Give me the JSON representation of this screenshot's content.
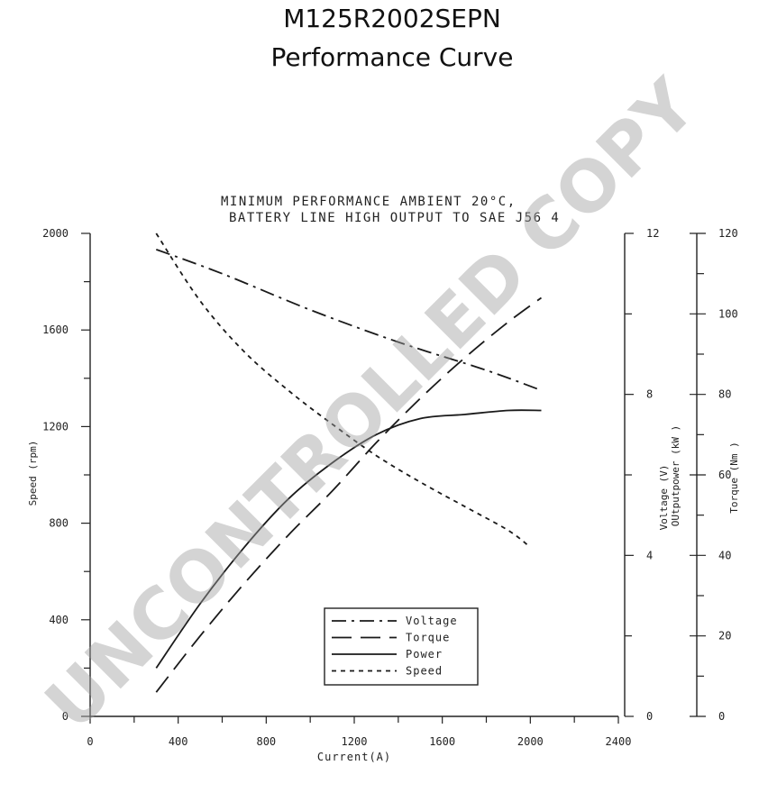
{
  "page": {
    "title_line1": "M125R2002SEPN",
    "title_line2": "Performance Curve",
    "watermark": "UNCONTROLLED COPY"
  },
  "chart_data": {
    "type": "line",
    "subtitle_line1": "MINIMUM PERFORMANCE AMBIENT 20°C,",
    "subtitle_line2": "BATTERY LINE HIGH OUTPUT TO SAE J56 4",
    "xlabel": "Current(A)",
    "xlim": [
      0,
      2400
    ],
    "x_ticks": [
      0,
      400,
      800,
      1200,
      1600,
      2000,
      2400
    ],
    "x_tick_labels": [
      "0",
      "400",
      "800",
      "1200",
      "1600",
      "2000",
      "2400"
    ],
    "y_axes": {
      "speed": {
        "label": "Speed (rpm)",
        "range": [
          0,
          2000
        ],
        "ticks": [
          0,
          400,
          800,
          1200,
          1600,
          2000
        ],
        "tick_labels": [
          "0",
          "400",
          "800",
          "1200",
          "1600",
          "2000"
        ]
      },
      "voltage_power": {
        "label_line1": "Voltage (V)",
        "label_line2": "OUtputpower (kW )",
        "range": [
          0,
          12
        ],
        "ticks": [
          0,
          4,
          8,
          12
        ],
        "tick_labels": [
          "0",
          "4",
          "8",
          "12"
        ]
      },
      "torque": {
        "label": "Torque (Nm )",
        "range": [
          0,
          120
        ],
        "ticks": [
          0,
          20,
          40,
          60,
          80,
          100,
          120
        ],
        "tick_labels": [
          "0",
          "20",
          "40",
          "60",
          "80",
          "100",
          "120"
        ]
      }
    },
    "legend": {
      "placement": "bottom-center"
    },
    "series": [
      {
        "name": "Voltage",
        "axis": "voltage_power",
        "dash": "dash-dot",
        "x": [
          300,
          600,
          1000,
          1400,
          1800,
          2050
        ],
        "y": [
          11.6,
          11.0,
          10.1,
          9.3,
          8.6,
          8.1
        ]
      },
      {
        "name": "Torque",
        "axis": "torque",
        "dash": "long-dash",
        "x": [
          300,
          500,
          700,
          900,
          1100,
          1300,
          1500,
          1700,
          1900,
          2050
        ],
        "y": [
          6,
          20,
          33,
          45,
          56,
          68,
          79,
          89,
          98,
          104
        ]
      },
      {
        "name": "Power",
        "axis": "voltage_power",
        "dash": "solid",
        "x": [
          300,
          500,
          700,
          900,
          1100,
          1300,
          1500,
          1700,
          1900,
          2050
        ],
        "y": [
          1.2,
          2.8,
          4.2,
          5.4,
          6.3,
          7.0,
          7.4,
          7.5,
          7.6,
          7.6
        ]
      },
      {
        "name": "Speed",
        "axis": "speed",
        "dash": "short-dash",
        "x": [
          300,
          500,
          700,
          900,
          1100,
          1300,
          1500,
          1700,
          1900,
          2000
        ],
        "y": [
          2000,
          1720,
          1510,
          1350,
          1210,
          1080,
          970,
          870,
          770,
          700
        ]
      }
    ]
  }
}
